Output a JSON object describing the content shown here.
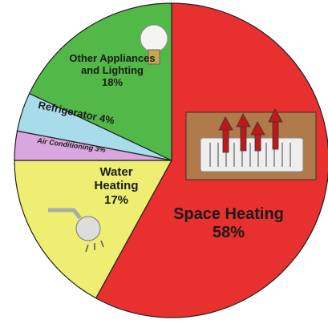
{
  "chart_data": {
    "type": "pie",
    "categories": [
      "Space Heating",
      "Water Heating",
      "Air Conditioning",
      "Refrigerator",
      "Other Appliances and Lighting"
    ],
    "values": [
      58,
      17,
      3,
      4,
      18
    ],
    "value_labels": [
      "58%",
      "17%",
      "3%",
      "4%",
      "18%"
    ],
    "colors": [
      "#e8302f",
      "#eeee72",
      "#d9a6e0",
      "#a9dcea",
      "#52b848"
    ]
  }
}
